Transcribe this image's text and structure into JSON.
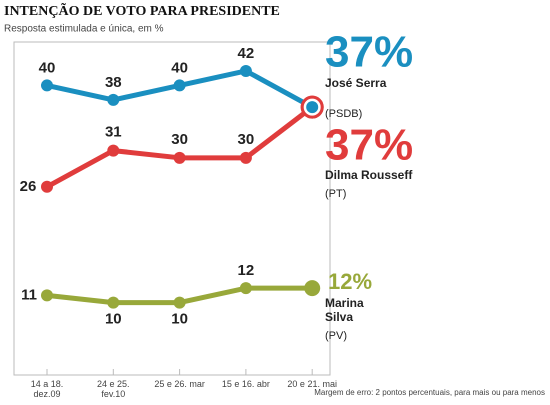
{
  "chart_data": {
    "type": "line",
    "title": "INTENÇÃO DE VOTO PARA PRESIDENTE",
    "subtitle": "Resposta estimulada e única, em %",
    "categories": [
      "14 a 18. dez.09",
      "24 e 25. fev.10",
      "25 e 26. mar",
      "15 e 16. abr",
      "20 e 21. mai"
    ],
    "series": [
      {
        "name": "José Serra",
        "party": "(PSDB)",
        "color": "#1a8fc0",
        "values": [
          40,
          38,
          40,
          42,
          37
        ],
        "value_labels": [
          "40",
          "38",
          "40",
          "42",
          "37%"
        ]
      },
      {
        "name": "Dilma Rousseff",
        "party": "(PT)",
        "color": "#e03c3c",
        "values": [
          26,
          31,
          30,
          30,
          37
        ],
        "value_labels": [
          "26",
          "31",
          "30",
          "30",
          "37%"
        ]
      },
      {
        "name": "Marina Silva",
        "party": "(PV)",
        "color": "#98a83a",
        "values": [
          11,
          10,
          10,
          12,
          12
        ],
        "value_labels": [
          "11",
          "10",
          "10",
          "12",
          "12%"
        ]
      }
    ],
    "ylim": [
      0,
      46
    ],
    "note": "Margem de erro: 2 pontos percentuais, para mais ou para menos"
  }
}
